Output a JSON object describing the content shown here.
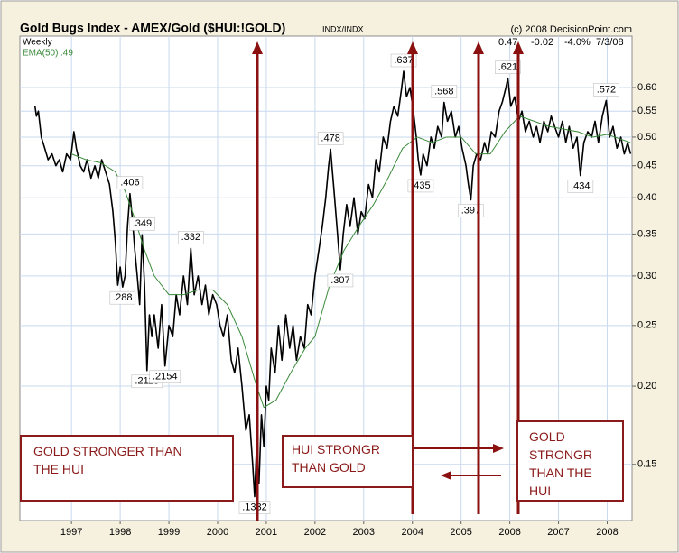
{
  "chart_data": {
    "type": "line",
    "title": "Gold Bugs Index - AMEX/Gold ($HUI:!GOLD)",
    "exchange": "INDX/INDX",
    "copyright": "(c) 2008 DecisionPoint.com",
    "period": "Weekly",
    "quote": [
      "0.47",
      "-0.02",
      "-4.0%",
      "7/3/08"
    ],
    "log_scale": true,
    "grid": true,
    "xlim": [
      1995.94,
      2008.51
    ],
    "xticks": [
      1997,
      1998,
      1999,
      2000,
      2001,
      2002,
      2003,
      2004,
      2005,
      2006,
      2007,
      2008
    ],
    "ylim": [
      0.122,
      0.725
    ],
    "yticks": [
      0.15,
      {
        "value": 0.2,
        "label": "0.20"
      },
      0.25,
      {
        "value": 0.3,
        "label": "0.30"
      },
      0.35,
      {
        "value": 0.4,
        "label": "0.40"
      },
      0.45,
      {
        "value": 0.5,
        "label": "0.50"
      },
      0.55,
      {
        "value": 0.6,
        "label": "0.60"
      }
    ],
    "series": [
      {
        "color": "#000000",
        "x": [
          1996.25,
          1996.28,
          1996.32,
          1996.38,
          1996.45,
          1996.52,
          1996.6,
          1996.68,
          1996.75,
          1996.82,
          1996.9,
          1996.98,
          1997.05,
          1997.1,
          1997.18,
          1997.25,
          1997.32,
          1997.4,
          1997.48,
          1997.55,
          1997.62,
          1997.7,
          1997.78,
          1997.85,
          1997.9,
          1997.95,
          1998.0,
          1998.05,
          1998.1,
          1998.15,
          1998.2,
          1998.25,
          1998.3,
          1998.35,
          1998.4,
          1998.45,
          1998.5,
          1998.55,
          1998.6,
          1998.65,
          1998.7,
          1998.78,
          1998.85,
          1998.92,
          1999.0,
          1999.08,
          1999.15,
          1999.22,
          1999.3,
          1999.38,
          1999.45,
          1999.52,
          1999.6,
          1999.68,
          1999.75,
          1999.82,
          1999.9,
          1999.98,
          2000.05,
          2000.12,
          2000.2,
          2000.28,
          2000.35,
          2000.42,
          2000.5,
          2000.58,
          2000.65,
          2000.72,
          2000.76,
          2000.8,
          2000.85,
          2000.9,
          2000.95,
          2001.0,
          2001.05,
          2001.1,
          2001.18,
          2001.25,
          2001.32,
          2001.4,
          2001.48,
          2001.55,
          2001.62,
          2001.7,
          2001.78,
          2001.85,
          2001.92,
          2002.0,
          2002.08,
          2002.15,
          2002.22,
          2002.28,
          2002.32,
          2002.38,
          2002.45,
          2002.52,
          2002.58,
          2002.65,
          2002.72,
          2002.8,
          2002.88,
          2002.95,
          2003.02,
          2003.1,
          2003.18,
          2003.25,
          2003.32,
          2003.4,
          2003.48,
          2003.55,
          2003.62,
          2003.7,
          2003.78,
          2003.82,
          2003.88,
          2003.95,
          2004.02,
          2004.08,
          2004.12,
          2004.17,
          2004.22,
          2004.3,
          2004.38,
          2004.45,
          2004.52,
          2004.6,
          2004.65,
          2004.72,
          2004.8,
          2004.88,
          2004.95,
          2005.02,
          2005.1,
          2005.15,
          2005.2,
          2005.25,
          2005.32,
          2005.4,
          2005.48,
          2005.55,
          2005.62,
          2005.7,
          2005.78,
          2005.85,
          2005.92,
          2005.96,
          2006.02,
          2006.1,
          2006.18,
          2006.25,
          2006.32,
          2006.4,
          2006.48,
          2006.55,
          2006.62,
          2006.7,
          2006.78,
          2006.85,
          2006.92,
          2007.0,
          2007.08,
          2007.15,
          2007.22,
          2007.3,
          2007.38,
          2007.45,
          2007.52,
          2007.6,
          2007.68,
          2007.75,
          2007.82,
          2007.9,
          2007.98,
          2008.05,
          2008.12,
          2008.2,
          2008.28,
          2008.35,
          2008.42,
          2008.48
        ],
        "values": [
          0.56,
          0.54,
          0.55,
          0.5,
          0.48,
          0.46,
          0.47,
          0.45,
          0.46,
          0.44,
          0.47,
          0.46,
          0.51,
          0.48,
          0.45,
          0.44,
          0.46,
          0.43,
          0.45,
          0.43,
          0.46,
          0.44,
          0.42,
          0.38,
          0.34,
          0.29,
          0.31,
          0.288,
          0.3,
          0.36,
          0.406,
          0.37,
          0.33,
          0.3,
          0.27,
          0.349,
          0.29,
          0.2118,
          0.26,
          0.24,
          0.26,
          0.23,
          0.27,
          0.2154,
          0.25,
          0.24,
          0.28,
          0.26,
          0.3,
          0.27,
          0.332,
          0.28,
          0.3,
          0.27,
          0.29,
          0.26,
          0.28,
          0.27,
          0.25,
          0.24,
          0.26,
          0.22,
          0.21,
          0.23,
          0.2,
          0.17,
          0.18,
          0.15,
          0.1332,
          0.16,
          0.14,
          0.18,
          0.16,
          0.2,
          0.19,
          0.23,
          0.21,
          0.25,
          0.22,
          0.26,
          0.23,
          0.25,
          0.22,
          0.24,
          0.23,
          0.27,
          0.26,
          0.3,
          0.33,
          0.36,
          0.4,
          0.45,
          0.478,
          0.42,
          0.36,
          0.307,
          0.35,
          0.39,
          0.36,
          0.4,
          0.35,
          0.38,
          0.37,
          0.42,
          0.4,
          0.46,
          0.44,
          0.5,
          0.48,
          0.53,
          0.56,
          0.54,
          0.6,
          0.637,
          0.58,
          0.6,
          0.55,
          0.5,
          0.46,
          0.435,
          0.47,
          0.45,
          0.5,
          0.48,
          0.52,
          0.5,
          0.568,
          0.53,
          0.55,
          0.5,
          0.52,
          0.48,
          0.45,
          0.42,
          0.397,
          0.45,
          0.47,
          0.46,
          0.49,
          0.47,
          0.51,
          0.5,
          0.55,
          0.57,
          0.6,
          0.621,
          0.56,
          0.58,
          0.53,
          0.55,
          0.51,
          0.53,
          0.5,
          0.52,
          0.49,
          0.53,
          0.51,
          0.54,
          0.52,
          0.5,
          0.53,
          0.49,
          0.52,
          0.48,
          0.5,
          0.434,
          0.49,
          0.51,
          0.5,
          0.53,
          0.49,
          0.54,
          0.572,
          0.5,
          0.52,
          0.48,
          0.5,
          0.47,
          0.49,
          0.47
        ]
      },
      {
        "name": "EMA(50)",
        "value_label": ".49",
        "color": "#3a8a3a",
        "x": [
          1997.0,
          1997.3,
          1997.6,
          1997.9,
          1998.1,
          1998.3,
          1998.5,
          1998.7,
          1999.0,
          1999.3,
          1999.6,
          1999.9,
          2000.2,
          2000.5,
          2000.8,
          2000.95,
          2001.2,
          2001.5,
          2001.8,
          2002.0,
          2002.3,
          2002.6,
          2002.9,
          2003.2,
          2003.5,
          2003.8,
          2004.1,
          2004.4,
          2004.7,
          2005.0,
          2005.3,
          2005.6,
          2005.9,
          2006.2,
          2006.5,
          2006.8,
          2007.1,
          2007.4,
          2007.7,
          2008.0,
          2008.48
        ],
        "values": [
          0.47,
          0.46,
          0.455,
          0.44,
          0.41,
          0.37,
          0.33,
          0.3,
          0.28,
          0.28,
          0.285,
          0.285,
          0.27,
          0.24,
          0.2,
          0.185,
          0.19,
          0.21,
          0.23,
          0.24,
          0.29,
          0.33,
          0.36,
          0.39,
          0.43,
          0.48,
          0.5,
          0.49,
          0.5,
          0.5,
          0.47,
          0.47,
          0.51,
          0.54,
          0.53,
          0.52,
          0.515,
          0.51,
          0.5,
          0.505,
          0.49
        ]
      }
    ],
    "point_labels": [
      {
        "x": 1998.2,
        "value": 0.406,
        "label": ".406",
        "place": "above"
      },
      {
        "x": 1998.05,
        "value": 0.288,
        "label": ".288",
        "place": "below"
      },
      {
        "x": 1998.45,
        "value": 0.349,
        "label": ".349",
        "place": "above"
      },
      {
        "x": 1998.55,
        "value": 0.2118,
        "label": ".2118",
        "place": "below"
      },
      {
        "x": 1998.92,
        "value": 0.2154,
        "label": ".2154",
        "place": "below"
      },
      {
        "x": 1999.45,
        "value": 0.332,
        "label": ".332",
        "place": "above"
      },
      {
        "x": 2000.76,
        "value": 0.1332,
        "label": ".1332",
        "place": "below"
      },
      {
        "x": 2002.32,
        "value": 0.478,
        "label": ".478",
        "place": "above"
      },
      {
        "x": 2002.52,
        "value": 0.307,
        "label": ".307",
        "place": "below"
      },
      {
        "x": 2003.82,
        "value": 0.637,
        "label": ".637",
        "place": "above"
      },
      {
        "x": 2004.17,
        "value": 0.435,
        "label": ".435",
        "place": "below"
      },
      {
        "x": 2004.65,
        "value": 0.568,
        "label": ".568",
        "place": "above"
      },
      {
        "x": 2005.2,
        "value": 0.397,
        "label": ".397",
        "place": "below"
      },
      {
        "x": 2005.96,
        "value": 0.621,
        "label": ".621",
        "place": "above"
      },
      {
        "x": 2007.45,
        "value": 0.434,
        "label": ".434",
        "place": "below"
      },
      {
        "x": 2007.98,
        "value": 0.572,
        "label": ".572",
        "place": "above"
      }
    ],
    "text_boxes": [
      [
        "GOLD STRONGER THAN",
        "THE HUI"
      ],
      [
        "HUI STRONGR",
        "THAN GOLD"
      ],
      [
        "GOLD",
        "STRONGR",
        "THAN THE",
        "HUI"
      ]
    ]
  }
}
